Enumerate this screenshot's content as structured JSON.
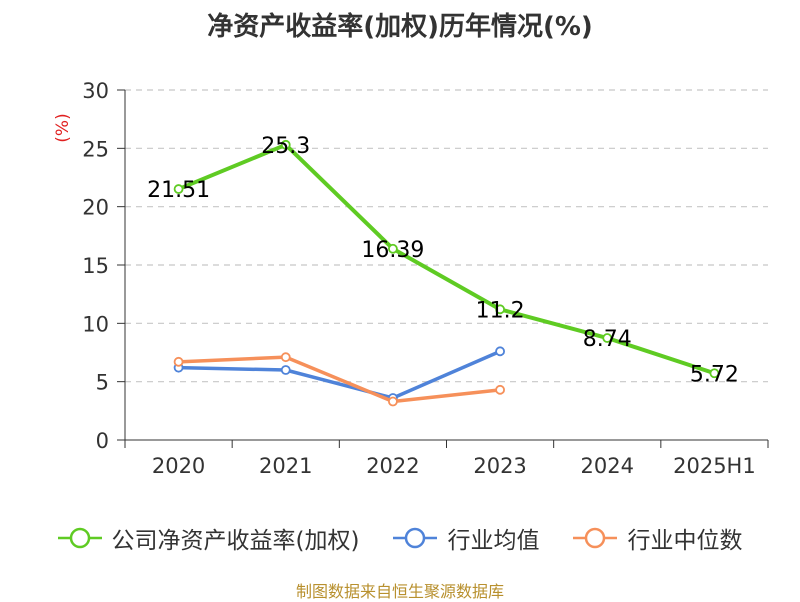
{
  "chart_data": {
    "type": "line",
    "title": "净资产收益率(加权)历年情况(%)",
    "ylabel": "(%)",
    "categories": [
      "2020",
      "2021",
      "2022",
      "2023",
      "2024",
      "2025H1"
    ],
    "ylim": [
      0,
      30
    ],
    "yticks": [
      0,
      5,
      10,
      15,
      20,
      25,
      30
    ],
    "grid": true,
    "legend_position": "bottom",
    "series": [
      {
        "name": "公司净资产收益率(加权)",
        "color": "#5fcb23",
        "values": [
          21.51,
          25.3,
          16.39,
          11.2,
          8.74,
          5.72
        ],
        "labels": [
          "21.51",
          "25.3",
          "16.39",
          "11.2",
          "8.74",
          "5.72"
        ]
      },
      {
        "name": "行业均值",
        "color": "#4f83d9",
        "values": [
          6.2,
          6.0,
          3.6,
          7.6,
          null,
          null
        ]
      },
      {
        "name": "行业中位数",
        "color": "#f6905a",
        "values": [
          6.7,
          7.1,
          3.3,
          4.3,
          null,
          null
        ]
      }
    ]
  },
  "source_note": "制图数据来自恒生聚源数据库"
}
